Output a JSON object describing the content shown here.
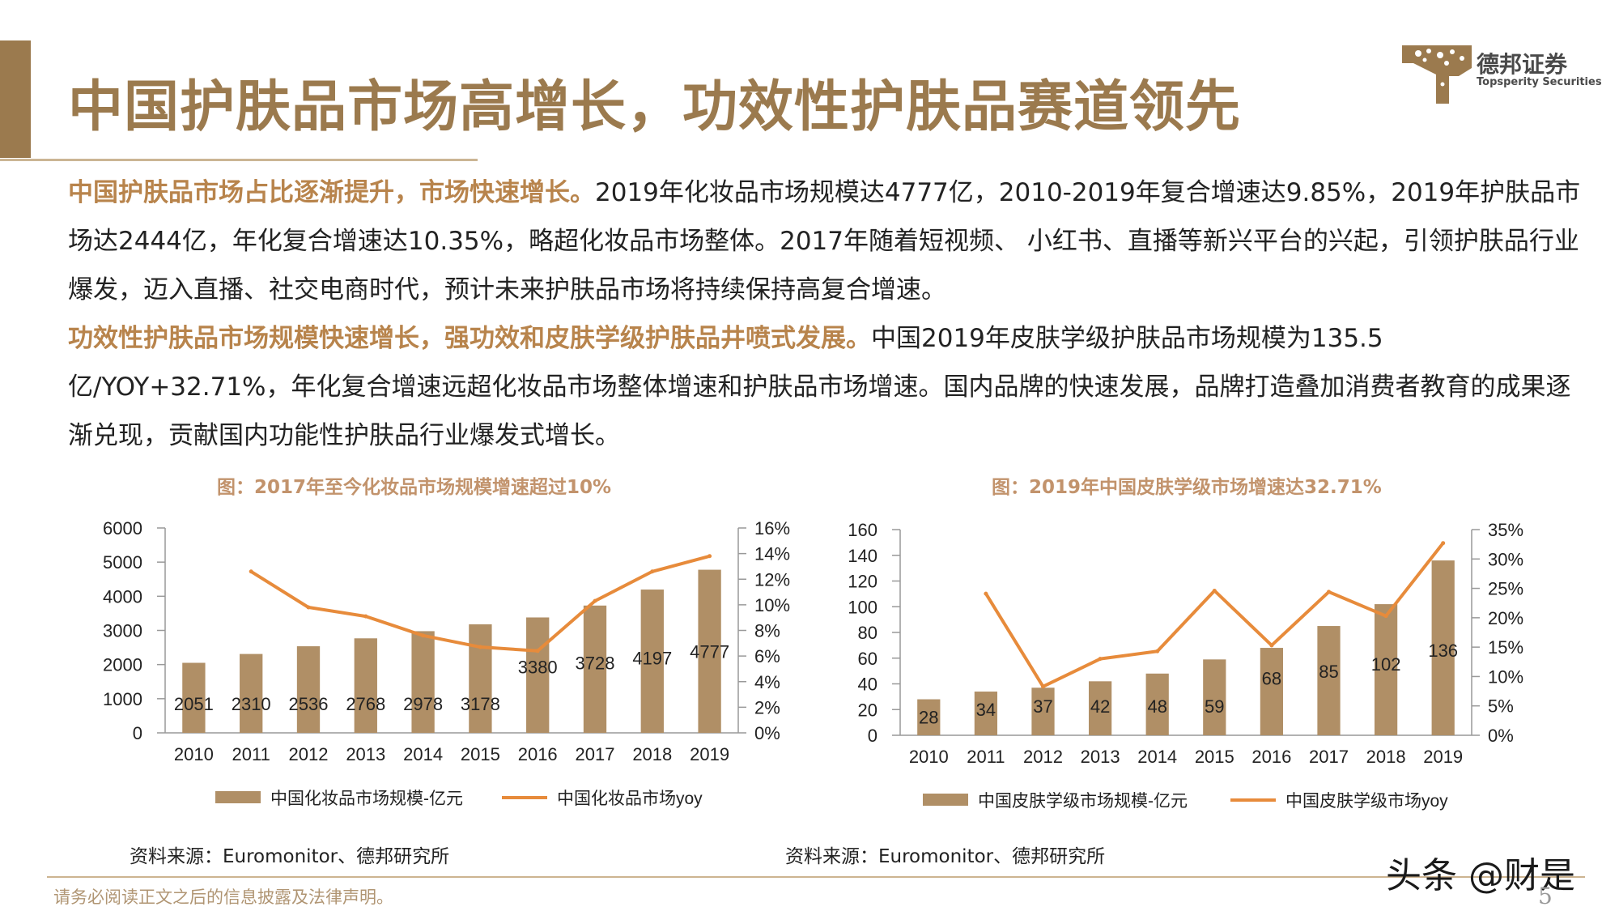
{
  "header": {
    "title": "中国护肤品市场高增长，功效性护肤品赛道领先",
    "logo_cn": "德邦证券",
    "logo_en": "Topsperity Securities"
  },
  "paragraph1": {
    "highlight": "中国护肤品市场占比逐渐提升，市场快速增长。",
    "body": "2019年化妆品市场规模达4777亿，2010-2019年复合增速达9.85%，2019年护肤品市场达2444亿，年化复合增速达10.35%，略超化妆品市场整体。2017年随着短视频、 小红书、直播等新兴平台的兴起，引领护肤品行业爆发，迈入直播、社交电商时代，预计未来护肤品市场将持续保持高复合增速。"
  },
  "paragraph2": {
    "highlight": "功效性护肤品市场规模快速增长，强功效和皮肤学级护肤品井喷式发展。",
    "body": "中国2019年皮肤学级护肤品市场规模为135.5亿/YOY+32.71%，年化复合增速远超化妆品市场整体增速和护肤品市场增速。国内品牌的快速发展，品牌打造叠加消费者教育的成果逐渐兑现，贡献国内功能性护肤品行业爆发式增长。"
  },
  "colors": {
    "bar": "#b08f66",
    "line": "#e78b3b",
    "accent": "#9b7a4e",
    "highlight": "#b8844c"
  },
  "chart_data": [
    {
      "type": "bar",
      "title": "图：2017年至今化妆品市场规模增速超过10%",
      "categories": [
        "2010",
        "2011",
        "2012",
        "2013",
        "2014",
        "2015",
        "2016",
        "2017",
        "2018",
        "2019"
      ],
      "series": [
        {
          "name": "中国化妆品市场规模-亿元",
          "type": "bar",
          "axis": "left",
          "values": [
            2051,
            2310,
            2536,
            2768,
            2978,
            3178,
            3380,
            3728,
            4197,
            4777
          ]
        },
        {
          "name": "中国化妆品市场yoy",
          "type": "line",
          "axis": "right",
          "values": [
            null,
            12.6,
            9.8,
            9.1,
            7.6,
            6.7,
            6.4,
            10.3,
            12.6,
            13.8
          ]
        }
      ],
      "y_ticks": [
        "0",
        "1000",
        "2000",
        "3000",
        "4000",
        "5000",
        "6000"
      ],
      "ylim": [
        0,
        6000
      ],
      "y2_ticks": [
        "0%",
        "2%",
        "4%",
        "6%",
        "8%",
        "10%",
        "12%",
        "14%",
        "16%"
      ],
      "y2lim": [
        0,
        16
      ],
      "data_labels": [
        "2051",
        "2310",
        "2536",
        "2768",
        "2978",
        "3178",
        "3380",
        "3728",
        "4197",
        "4777"
      ],
      "legend_position": "bottom",
      "source": "资料来源：Euromonitor、德邦研究所"
    },
    {
      "type": "bar",
      "title": "图：2019年中国皮肤学级市场增速达32.71%",
      "categories": [
        "2010",
        "2011",
        "2012",
        "2013",
        "2014",
        "2015",
        "2016",
        "2017",
        "2018",
        "2019"
      ],
      "series": [
        {
          "name": "中国皮肤学级市场规模-亿元",
          "type": "bar",
          "axis": "left",
          "values": [
            28,
            34,
            37,
            42,
            48,
            59,
            68,
            85,
            102,
            136
          ]
        },
        {
          "name": "中国皮肤学级市场yoy",
          "type": "line",
          "axis": "right",
          "values": [
            null,
            24.1,
            8.3,
            13.0,
            14.3,
            24.6,
            15.3,
            24.4,
            20.3,
            32.7
          ]
        }
      ],
      "y_ticks": [
        "0",
        "20",
        "40",
        "60",
        "80",
        "100",
        "120",
        "140",
        "160"
      ],
      "ylim": [
        0,
        160
      ],
      "y2_ticks": [
        "0%",
        "5%",
        "10%",
        "15%",
        "20%",
        "25%",
        "30%",
        "35%"
      ],
      "y2lim": [
        0,
        35
      ],
      "data_labels": [
        "28",
        "34",
        "37",
        "42",
        "48",
        "59",
        "68",
        "85",
        "102",
        "136"
      ],
      "legend_position": "bottom",
      "source": "资料来源：Euromonitor、德邦研究所"
    }
  ],
  "footer": {
    "disclaimer": "请务必阅读正文之后的信息披露及法律声明。",
    "watermark": "头条 @财是",
    "page": "5"
  }
}
